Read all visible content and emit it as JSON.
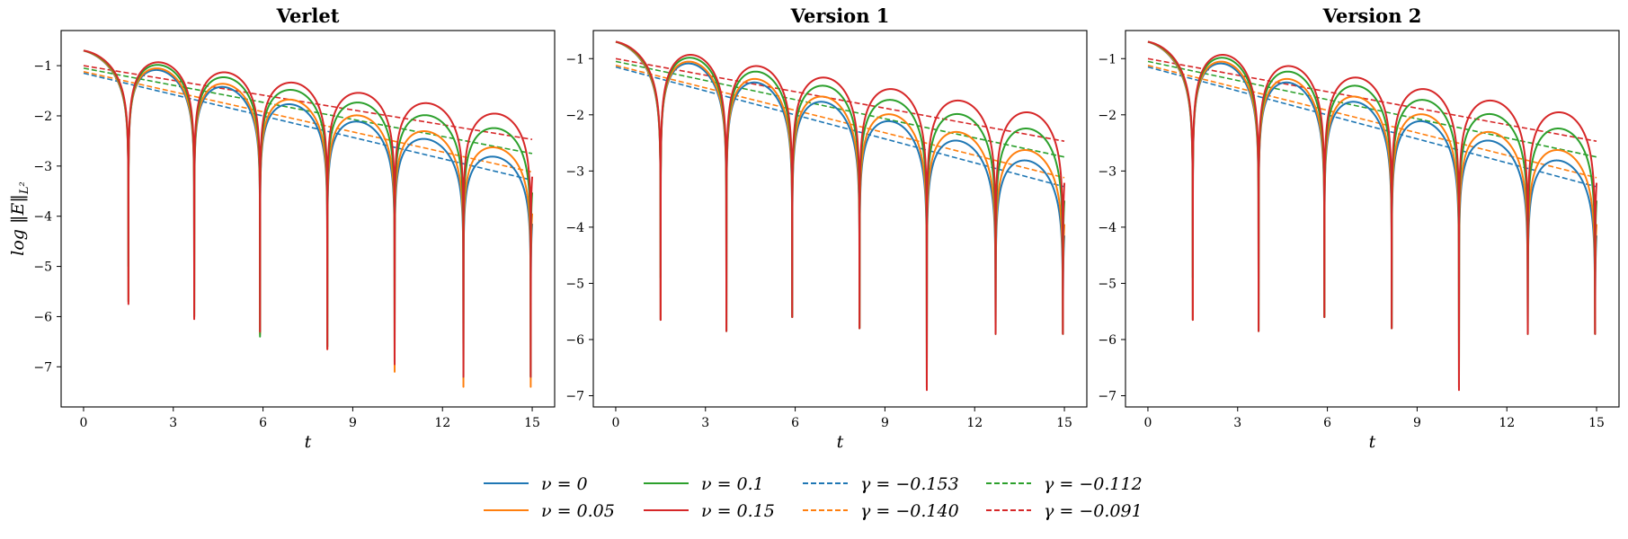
{
  "legend": {
    "items": [
      {
        "label": "ν = 0",
        "color": "#1f77b4",
        "style": "solid"
      },
      {
        "label": "ν = 0.05",
        "color": "#ff7f0e",
        "style": "solid"
      },
      {
        "label": "ν = 0.1",
        "color": "#2ca02c",
        "style": "solid"
      },
      {
        "label": "ν = 0.15",
        "color": "#d62728",
        "style": "solid"
      },
      {
        "label": "γ = −0.153",
        "color": "#1f77b4",
        "style": "dashed"
      },
      {
        "label": "γ = −0.140",
        "color": "#ff7f0e",
        "style": "dashed"
      },
      {
        "label": "γ = −0.112",
        "color": "#2ca02c",
        "style": "dashed"
      },
      {
        "label": "γ = −0.091",
        "color": "#d62728",
        "style": "dashed"
      }
    ],
    "placement": "bottom-center",
    "columns": 4
  },
  "chart_data": [
    {
      "type": "line",
      "title": "Verlet",
      "xlabel": "t",
      "ylabel": "log ‖E‖_{L²}",
      "ylabel_main": "log ‖E‖",
      "ylabel_sub": "L²",
      "xlim": [
        -0.75,
        15.75
      ],
      "ylim": [
        -7.8,
        -0.3
      ],
      "xticks": [
        0,
        3,
        6,
        9,
        12,
        15
      ],
      "yticks": [
        -1,
        -2,
        -3,
        -4,
        -5,
        -6,
        -7
      ],
      "grid": false,
      "series": [
        {
          "name": "ν = 0",
          "kind": "oscillation",
          "a": 0.1535,
          "min_depth": [
            -5.4,
            -5.7,
            -6.0,
            -6.3,
            -6.6,
            -6.9,
            -7.2
          ]
        },
        {
          "name": "ν = 0.05",
          "kind": "oscillation",
          "a": 0.14,
          "min_depth": [
            -5.4,
            -5.7,
            -6.0,
            -6.35,
            -6.65,
            -7.1,
            -7.4
          ]
        },
        {
          "name": "ν = 0.1",
          "kind": "oscillation",
          "a": 0.112,
          "min_depth": [
            -5.4,
            -5.0,
            -6.0,
            -6.4,
            -6.6,
            -6.9,
            -7.2
          ]
        },
        {
          "name": "ν = 0.15",
          "kind": "oscillation",
          "a": 0.091,
          "min_depth": [
            -5.4,
            -5.75,
            -6.05,
            -6.3,
            -6.65,
            -6.95,
            -7.2
          ]
        },
        {
          "name": "γ = −0.153",
          "kind": "trend",
          "x": [
            0,
            15
          ],
          "y": [
            -1.15,
            -3.28
          ]
        },
        {
          "name": "γ = −0.140",
          "kind": "trend",
          "x": [
            0,
            15
          ],
          "y": [
            -1.12,
            -3.12
          ]
        },
        {
          "name": "γ = −0.112",
          "kind": "trend",
          "x": [
            0,
            15
          ],
          "y": [
            -1.05,
            -2.75
          ]
        },
        {
          "name": "γ = −0.091",
          "kind": "trend",
          "x": [
            0,
            15
          ],
          "y": [
            -1.0,
            -2.47
          ]
        }
      ]
    },
    {
      "type": "line",
      "title": "Version 1",
      "xlabel": "t",
      "ylabel": "",
      "xlim": [
        -0.75,
        15.75
      ],
      "ylim": [
        -7.2,
        -0.5
      ],
      "xticks": [
        0,
        3,
        6,
        9,
        12,
        15
      ],
      "yticks": [
        -1,
        -2,
        -3,
        -4,
        -5,
        -6,
        -7
      ],
      "grid": false,
      "series": [
        {
          "name": "ν = 0",
          "kind": "oscillation",
          "a": 0.1535,
          "min_depth": [
            -5.2,
            -5.65,
            -5.85,
            -5.6,
            -5.8,
            -6.85,
            -5.9
          ]
        },
        {
          "name": "ν = 0.05",
          "kind": "oscillation",
          "a": 0.14,
          "min_depth": [
            -5.2,
            -5.65,
            -5.85,
            -5.6,
            -5.8,
            -6.85,
            -5.9
          ]
        },
        {
          "name": "ν = 0.1",
          "kind": "oscillation",
          "a": 0.112,
          "min_depth": [
            -5.2,
            -4.9,
            -5.85,
            -5.6,
            -5.8,
            -6.85,
            -5.9
          ]
        },
        {
          "name": "ν = 0.15",
          "kind": "oscillation",
          "a": 0.091,
          "min_depth": [
            -5.2,
            -5.65,
            -5.85,
            -5.6,
            -5.8,
            -6.9,
            -5.9
          ]
        },
        {
          "name": "γ = −0.153",
          "kind": "trend",
          "x": [
            0,
            15
          ],
          "y": [
            -1.15,
            -3.28
          ]
        },
        {
          "name": "γ = −0.140",
          "kind": "trend",
          "x": [
            0,
            15
          ],
          "y": [
            -1.12,
            -3.12
          ]
        },
        {
          "name": "γ = −0.112",
          "kind": "trend",
          "x": [
            0,
            15
          ],
          "y": [
            -1.05,
            -2.75
          ]
        },
        {
          "name": "γ = −0.091",
          "kind": "trend",
          "x": [
            0,
            15
          ],
          "y": [
            -1.0,
            -2.47
          ]
        }
      ]
    },
    {
      "type": "line",
      "title": "Version 2",
      "xlabel": "t",
      "ylabel": "",
      "xlim": [
        -0.75,
        15.75
      ],
      "ylim": [
        -7.2,
        -0.5
      ],
      "xticks": [
        0,
        3,
        6,
        9,
        12,
        15
      ],
      "yticks": [
        -1,
        -2,
        -3,
        -4,
        -5,
        -6,
        -7
      ],
      "grid": false,
      "series": [
        {
          "name": "ν = 0",
          "kind": "oscillation",
          "a": 0.1535,
          "min_depth": [
            -5.2,
            -5.65,
            -5.85,
            -5.6,
            -5.8,
            -6.85,
            -5.9
          ]
        },
        {
          "name": "ν = 0.05",
          "kind": "oscillation",
          "a": 0.14,
          "min_depth": [
            -5.2,
            -5.65,
            -5.85,
            -5.6,
            -5.8,
            -6.85,
            -5.9
          ]
        },
        {
          "name": "ν = 0.1",
          "kind": "oscillation",
          "a": 0.112,
          "min_depth": [
            -5.2,
            -4.9,
            -5.85,
            -5.6,
            -5.8,
            -6.85,
            -5.9
          ]
        },
        {
          "name": "ν = 0.15",
          "kind": "oscillation",
          "a": 0.091,
          "min_depth": [
            -5.2,
            -5.65,
            -5.85,
            -5.6,
            -5.8,
            -6.9,
            -5.9
          ]
        },
        {
          "name": "γ = −0.153",
          "kind": "trend",
          "x": [
            0,
            15
          ],
          "y": [
            -1.15,
            -3.28
          ]
        },
        {
          "name": "γ = −0.140",
          "kind": "trend",
          "x": [
            0,
            15
          ],
          "y": [
            -1.12,
            -3.12
          ]
        },
        {
          "name": "γ = −0.112",
          "kind": "trend",
          "x": [
            0,
            15
          ],
          "y": [
            -1.05,
            -2.75
          ]
        },
        {
          "name": "γ = −0.091",
          "kind": "trend",
          "x": [
            0,
            15
          ],
          "y": [
            -1.0,
            -2.47
          ]
        }
      ]
    }
  ]
}
